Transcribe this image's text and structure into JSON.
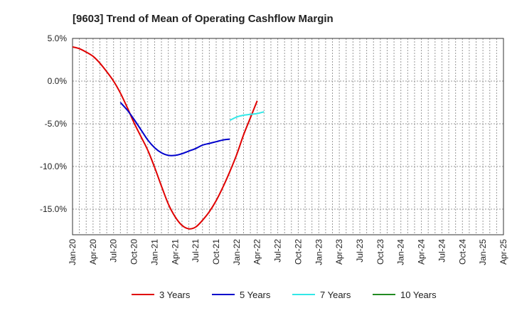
{
  "chart_data": {
    "type": "line",
    "title": "[9603]  Trend of Mean of Operating Cashflow Margin",
    "xlabel": "",
    "ylabel": "",
    "x_ticks": [
      "Jan-20",
      "Apr-20",
      "Jul-20",
      "Oct-20",
      "Jan-21",
      "Apr-21",
      "Jul-21",
      "Oct-21",
      "Jan-22",
      "Apr-22",
      "Jul-22",
      "Oct-22",
      "Jan-23",
      "Apr-23",
      "Jul-23",
      "Oct-23",
      "Jan-24",
      "Apr-24",
      "Jul-24",
      "Oct-24",
      "Jan-25",
      "Apr-25"
    ],
    "y_ticks": [
      "5.0%",
      "0.0%",
      "-5.0%",
      "-10.0%",
      "-15.0%"
    ],
    "y_tick_values": [
      5,
      0,
      -5,
      -10,
      -15
    ],
    "ylim": [
      -18,
      5
    ],
    "grid": true,
    "legend_position": "bottom",
    "series": [
      {
        "name": "3 Years",
        "color": "#e00000",
        "values": [
          4.0,
          3.8,
          3.4,
          2.9,
          2.1,
          1.1,
          0.0,
          -1.4,
          -3.1,
          -4.9,
          -6.5,
          -8.1,
          -10.1,
          -12.3,
          -14.4,
          -15.9,
          -16.9,
          -17.3,
          -17.1,
          -16.3,
          -15.3,
          -14.0,
          -12.4,
          -10.6,
          -8.6,
          -6.3,
          -4.3,
          -2.3
        ]
      },
      {
        "name": "5 Years",
        "color": "#0000cc",
        "start_index": 7,
        "values": [
          -2.5,
          -3.4,
          -4.5,
          -5.7,
          -6.9,
          -7.8,
          -8.4,
          -8.7,
          -8.7,
          -8.5,
          -8.2,
          -7.9,
          -7.5,
          -7.3,
          -7.1,
          -6.9,
          -6.8
        ]
      },
      {
        "name": "7 Years",
        "color": "#33e8e8",
        "start_index": 23,
        "values": [
          -4.6,
          -4.2,
          -4.0,
          -3.9,
          -3.8,
          -3.6
        ]
      },
      {
        "name": "10 Years",
        "color": "#228b22",
        "start_index": 0,
        "values": []
      }
    ]
  }
}
